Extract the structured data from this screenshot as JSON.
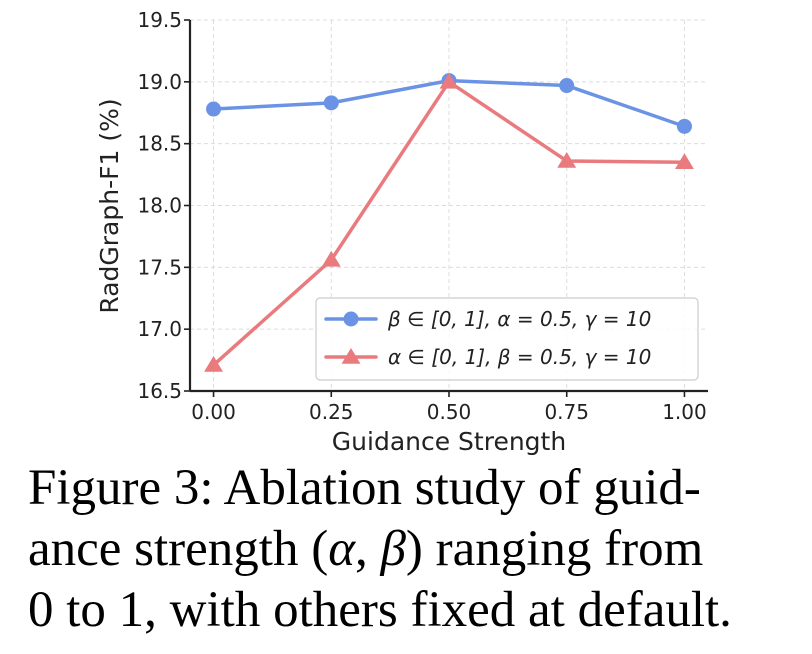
{
  "chart_data": {
    "type": "line",
    "title": "",
    "xlabel": "Guidance Strength",
    "ylabel": "RadGraph-F1 (%)",
    "x": [
      0.0,
      0.25,
      0.5,
      0.75,
      1.0
    ],
    "x_tick_labels": [
      "0.00",
      "0.25",
      "0.50",
      "0.75",
      "1.00"
    ],
    "y_ticks": [
      16.5,
      17.0,
      17.5,
      18.0,
      18.5,
      19.0,
      19.5
    ],
    "y_tick_labels": [
      "16.5",
      "17.0",
      "17.5",
      "18.0",
      "18.5",
      "19.0",
      "19.5"
    ],
    "xlim": [
      -0.05,
      1.05
    ],
    "ylim": [
      16.5,
      19.5
    ],
    "grid": true,
    "legend_position": "lower-right",
    "series": [
      {
        "name": "β ∈ [0, 1],  α = 0.5,  γ = 10",
        "values": [
          18.78,
          18.83,
          19.01,
          18.97,
          18.64
        ],
        "color": "#6a93e6",
        "marker": "circle"
      },
      {
        "name": "α ∈ [0, 1],  β = 0.5,  γ = 10",
        "values": [
          16.71,
          17.56,
          19.0,
          18.36,
          18.35
        ],
        "color": "#e97a7d",
        "marker": "triangle"
      }
    ]
  },
  "caption": {
    "line1": "Figure 3:   Ablation study of guid-",
    "line2_pre": "ance strength (",
    "line2_alpha": "α",
    "line2_mid": ", ",
    "line2_beta": "β",
    "line2_post": ") ranging from",
    "line3": "0 to 1, with others fixed at default."
  }
}
